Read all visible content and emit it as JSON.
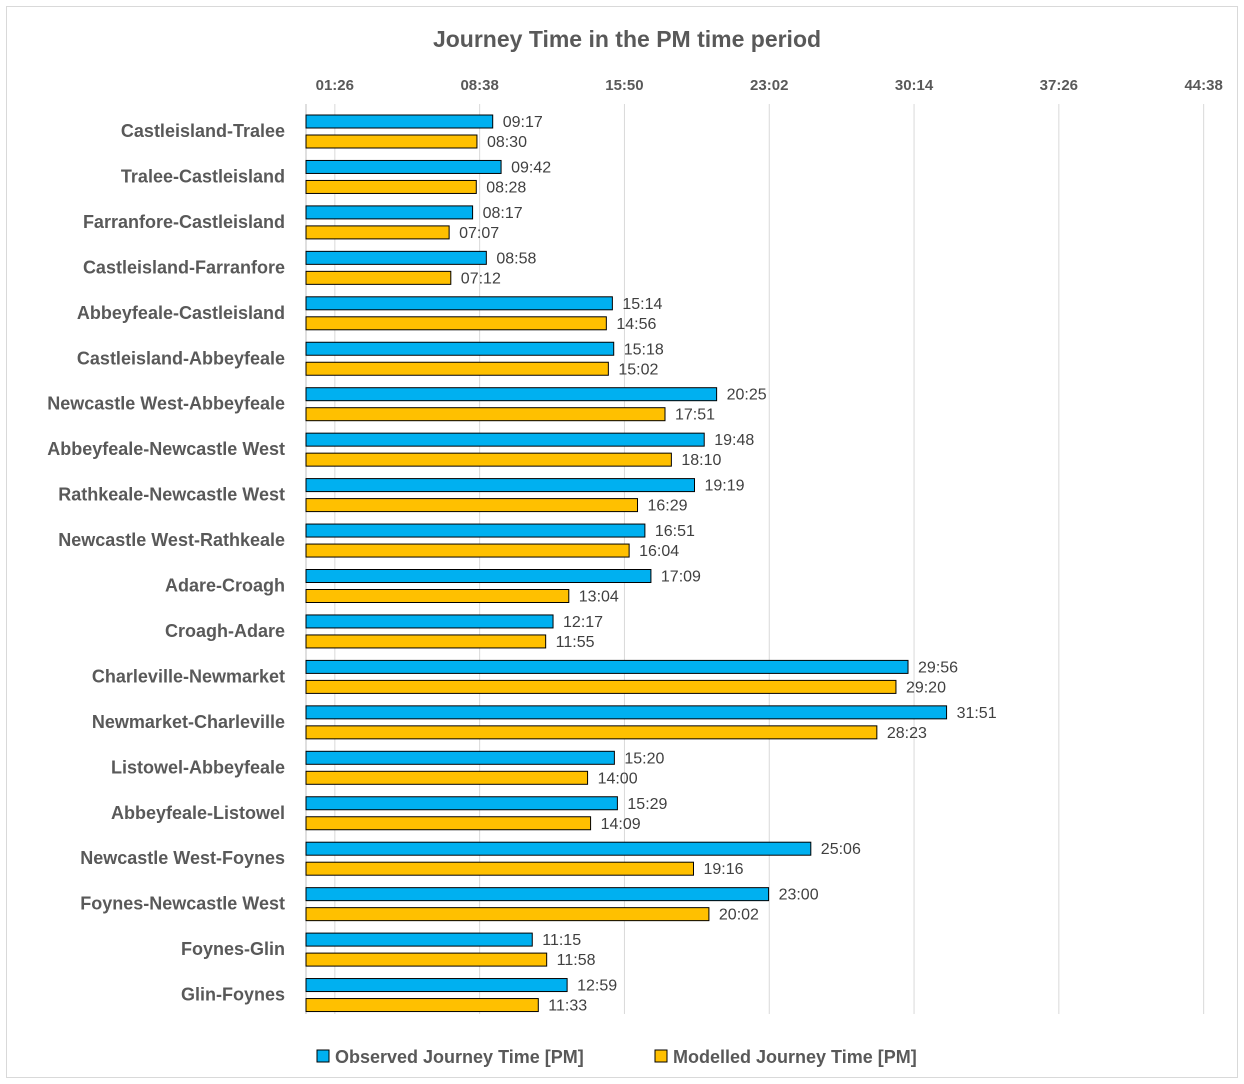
{
  "chart_data": {
    "type": "bar",
    "orientation": "horizontal",
    "title": "Journey Time in the PM time period",
    "x_ticks": [
      "01:26",
      "08:38",
      "15:50",
      "23:02",
      "30:14",
      "37:26",
      "44:38"
    ],
    "xlim": [
      "00:00",
      "45:00"
    ],
    "grid": true,
    "legend_position": "bottom",
    "categories": [
      "Castleisland-Tralee",
      "Tralee-Castleisland",
      "Farranfore-Castleisland",
      "Castleisland-Farranfore",
      "Abbeyfeale-Castleisland",
      "Castleisland-Abbeyfeale",
      "Newcastle West-Abbeyfeale",
      "Abbeyfeale-Newcastle West",
      "Rathkeale-Newcastle West",
      "Newcastle West-Rathkeale",
      "Adare-Croagh",
      "Croagh-Adare",
      "Charleville-Newmarket",
      "Newmarket-Charleville",
      "Listowel-Abbeyfeale",
      "Abbeyfeale-Listowel",
      "Newcastle West-Foynes",
      "Foynes-Newcastle West",
      "Foynes-Glin",
      "Glin-Foynes"
    ],
    "series": [
      {
        "name": "Observed Journey Time [PM]",
        "color": "#00b0f0",
        "values": [
          "09:17",
          "09:42",
          "08:17",
          "08:58",
          "15:14",
          "15:18",
          "20:25",
          "19:48",
          "19:19",
          "16:51",
          "17:09",
          "12:17",
          "29:56",
          "31:51",
          "15:20",
          "15:29",
          "25:06",
          "23:00",
          "11:15",
          "12:59"
        ]
      },
      {
        "name": "Modelled Journey Time [PM]",
        "color": "#ffc000",
        "values": [
          "08:30",
          "08:28",
          "07:07",
          "07:12",
          "14:56",
          "15:02",
          "17:51",
          "18:10",
          "16:29",
          "16:04",
          "13:04",
          "11:55",
          "29:20",
          "28:23",
          "14:00",
          "14:09",
          "19:16",
          "20:02",
          "11:58",
          "11:33"
        ]
      }
    ]
  }
}
